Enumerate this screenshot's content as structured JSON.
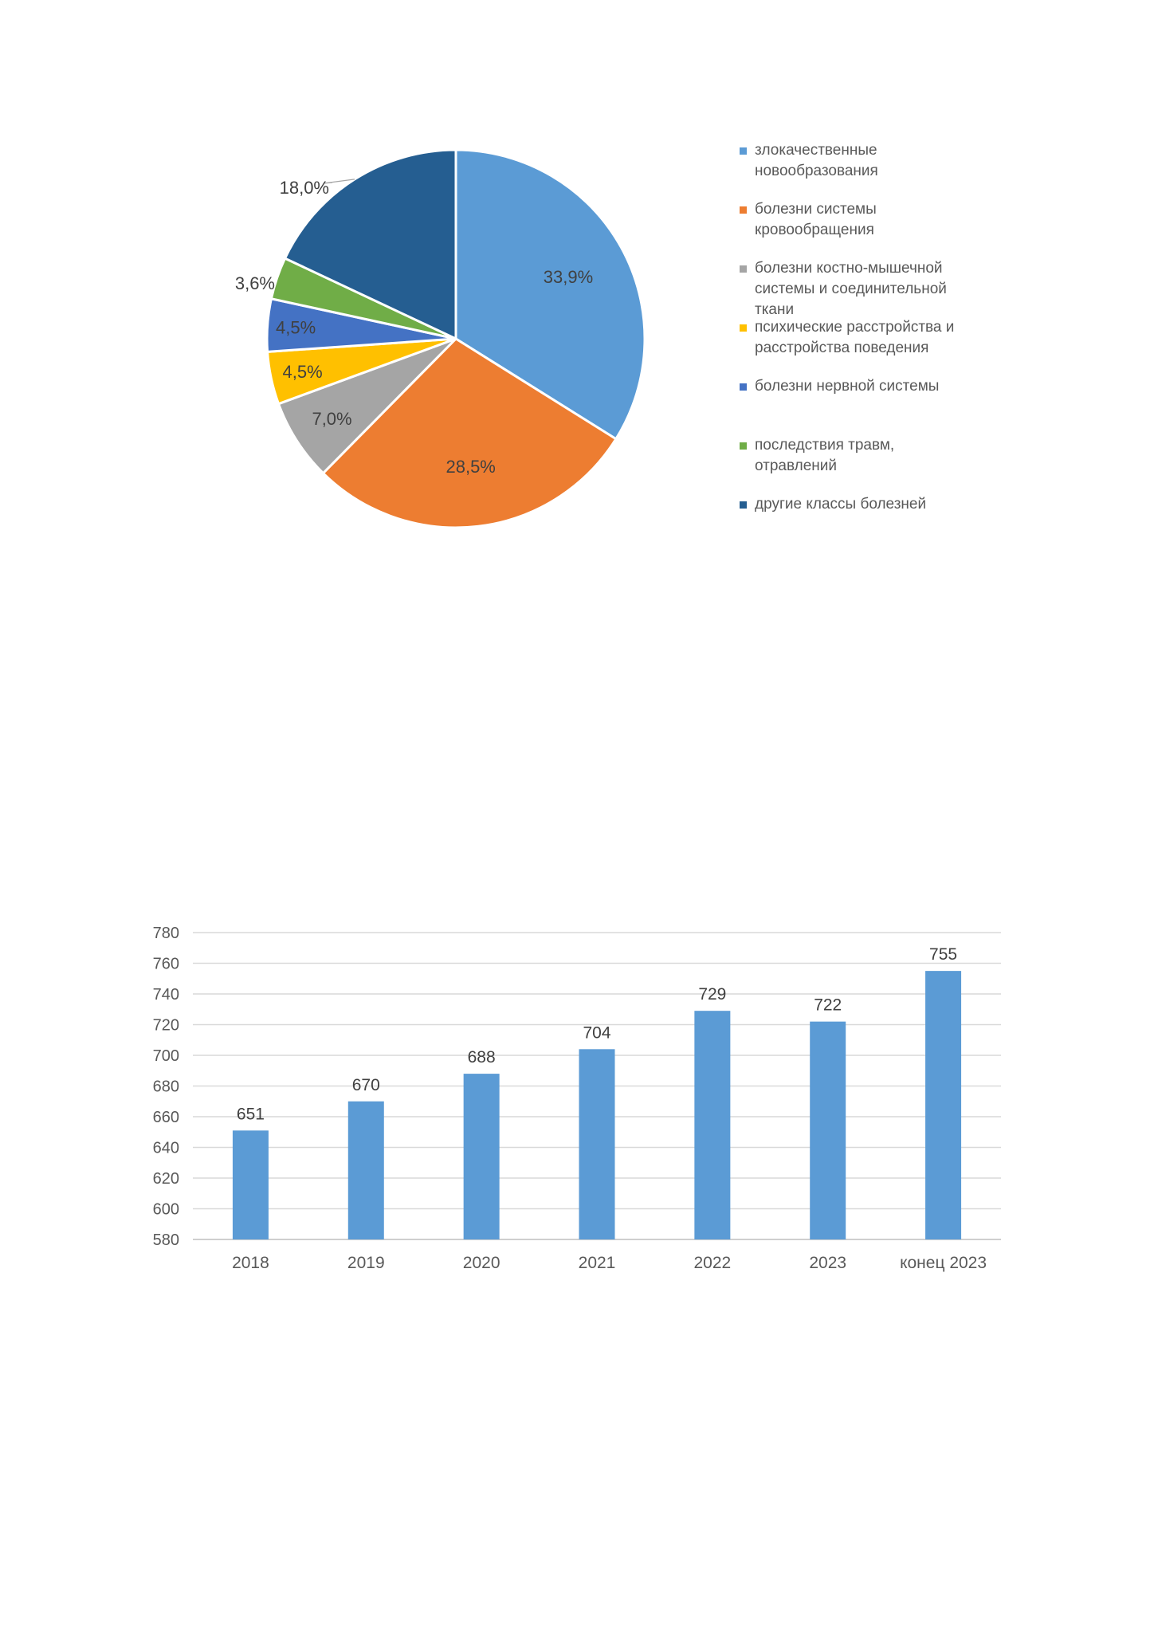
{
  "chart_data": [
    {
      "type": "pie",
      "slices": [
        {
          "name": "злокачественные новообразования",
          "value": 33.9,
          "label": "33,9%",
          "color": "#5b9bd5"
        },
        {
          "name": "болезни системы кровообращения",
          "value": 28.5,
          "label": "28,5%",
          "color": "#ed7d31"
        },
        {
          "name": "болезни костно-мышечной системы и соединительной ткани",
          "value": 7.0,
          "label": "7,0%",
          "color": "#a5a5a5"
        },
        {
          "name": "психические расстройства и расстройства поведения",
          "value": 4.5,
          "label": "4,5%",
          "color": "#ffc000"
        },
        {
          "name": "болезни нервной системы",
          "value": 4.5,
          "label": "4,5%",
          "color": "#4472c4"
        },
        {
          "name": "последствия травм, отравлений",
          "value": 3.6,
          "label": "3,6%",
          "color": "#70ad47"
        },
        {
          "name": "другие классы болезней",
          "value": 18.0,
          "label": "18,0%",
          "color": "#255e91"
        }
      ],
      "legend": {
        "position": "right",
        "items": [
          {
            "lines": [
              "злокачественные",
              "новообразования"
            ],
            "color": "#5b9bd5"
          },
          {
            "lines": [
              "болезни системы",
              "кровообращения"
            ],
            "color": "#ed7d31"
          },
          {
            "lines": [
              "болезни костно-мышечной",
              "системы и соединительной",
              "ткани"
            ],
            "color": "#a5a5a5"
          },
          {
            "lines": [
              "психические расстройства и",
              "расстройства поведения"
            ],
            "color": "#ffc000"
          },
          {
            "lines": [
              "болезни нервной системы"
            ],
            "color": "#4472c4"
          },
          {
            "lines": [
              "последствия травм,",
              "отравлений"
            ],
            "color": "#70ad47"
          },
          {
            "lines": [
              "другие классы болезней"
            ],
            "color": "#255e91"
          }
        ]
      }
    },
    {
      "type": "bar",
      "categories": [
        "2018",
        "2019",
        "2020",
        "2021",
        "2022",
        "2023",
        "конец 2023"
      ],
      "values": [
        651,
        670,
        688,
        704,
        729,
        722,
        755
      ],
      "data_labels": [
        "651",
        "670",
        "688",
        "704",
        "729",
        "722",
        "755"
      ],
      "ylim": [
        580,
        780
      ],
      "yticks": [
        580,
        600,
        620,
        640,
        660,
        680,
        700,
        720,
        740,
        760,
        780
      ],
      "grid": true,
      "color": "#5b9bd5"
    }
  ]
}
